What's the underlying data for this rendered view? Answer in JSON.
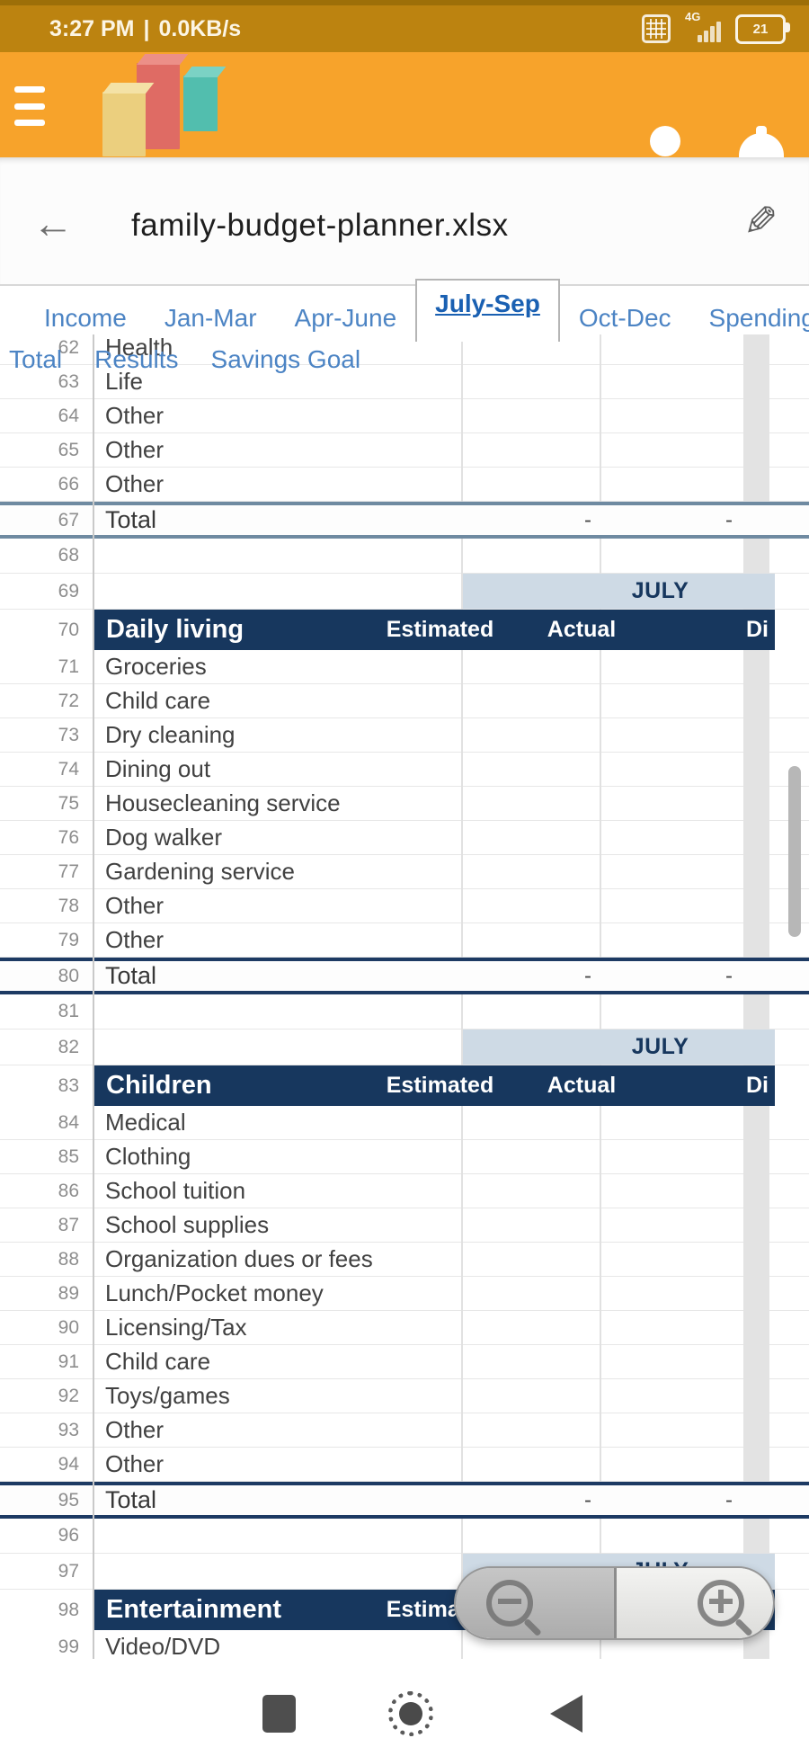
{
  "status_bar": {
    "time": "3:27 PM",
    "divider": "|",
    "net_speed": "0.0KB/s",
    "network_type": "4G",
    "battery_percent": "21"
  },
  "app_bar": {
    "menu_icon": "hamburger-menu",
    "logo_icon": "3d-bar-chart-logo",
    "profile_icon": "person",
    "notifications_icon": "bell"
  },
  "title_bar": {
    "back_icon": "arrow-left",
    "filename": "family-budget-planner.xlsx",
    "edit_icon": "pencil"
  },
  "tabs": {
    "line1": [
      {
        "label": "Income",
        "selected": false
      },
      {
        "label": "Jan-Mar",
        "selected": false
      },
      {
        "label": "Apr-June",
        "selected": false
      },
      {
        "label": "July-Sep",
        "selected": true
      },
      {
        "label": "Oct-Dec",
        "selected": false
      },
      {
        "label": "Spending",
        "selected": false
      }
    ],
    "line2": [
      {
        "label": "Total"
      },
      {
        "label": "Results"
      },
      {
        "label": "Savings Goal"
      }
    ]
  },
  "sheet": {
    "month_label": "JULY",
    "column_headers": {
      "estimated": "Estimated",
      "actual": "Actual",
      "difference_partial": "Di"
    },
    "rows": [
      {
        "n": "62",
        "type": "plain",
        "label": "Health"
      },
      {
        "n": "63",
        "type": "plain",
        "label": "Life"
      },
      {
        "n": "64",
        "type": "plain",
        "label": "Other"
      },
      {
        "n": "65",
        "type": "plain",
        "label": "Other"
      },
      {
        "n": "66",
        "type": "plain",
        "label": "Other"
      },
      {
        "n": "67",
        "type": "total",
        "variant": "slate",
        "label": "Total",
        "estimated": "-",
        "actual": "-"
      },
      {
        "n": "68",
        "type": "empty"
      },
      {
        "n": "69",
        "type": "month"
      },
      {
        "n": "70",
        "type": "section",
        "label": "Daily living"
      },
      {
        "n": "71",
        "type": "plain",
        "label": "Groceries"
      },
      {
        "n": "72",
        "type": "plain",
        "label": "Child care"
      },
      {
        "n": "73",
        "type": "plain",
        "label": "Dry cleaning"
      },
      {
        "n": "74",
        "type": "plain",
        "label": "Dining out"
      },
      {
        "n": "75",
        "type": "plain",
        "label": "Housecleaning service"
      },
      {
        "n": "76",
        "type": "plain",
        "label": "Dog walker"
      },
      {
        "n": "77",
        "type": "plain",
        "label": "Gardening service"
      },
      {
        "n": "78",
        "type": "plain",
        "label": "Other"
      },
      {
        "n": "79",
        "type": "plain",
        "label": "Other"
      },
      {
        "n": "80",
        "type": "total",
        "variant": "navy",
        "label": "Total",
        "estimated": "-",
        "actual": "-"
      },
      {
        "n": "81",
        "type": "empty"
      },
      {
        "n": "82",
        "type": "month"
      },
      {
        "n": "83",
        "type": "section",
        "label": "Children"
      },
      {
        "n": "84",
        "type": "plain",
        "label": "Medical"
      },
      {
        "n": "85",
        "type": "plain",
        "label": "Clothing"
      },
      {
        "n": "86",
        "type": "plain",
        "label": "School tuition"
      },
      {
        "n": "87",
        "type": "plain",
        "label": "School supplies"
      },
      {
        "n": "88",
        "type": "plain",
        "label": "Organization dues or fees"
      },
      {
        "n": "89",
        "type": "plain",
        "label": "Lunch/Pocket money"
      },
      {
        "n": "90",
        "type": "plain",
        "label": "Licensing/Tax"
      },
      {
        "n": "91",
        "type": "plain",
        "label": "Child care"
      },
      {
        "n": "92",
        "type": "plain",
        "label": "Toys/games"
      },
      {
        "n": "93",
        "type": "plain",
        "label": "Other"
      },
      {
        "n": "94",
        "type": "plain",
        "label": "Other"
      },
      {
        "n": "95",
        "type": "total",
        "variant": "navy",
        "label": "Total",
        "estimated": "-",
        "actual": "-"
      },
      {
        "n": "96",
        "type": "empty"
      },
      {
        "n": "97",
        "type": "month"
      },
      {
        "n": "98",
        "type": "section",
        "label": "Entertainment"
      },
      {
        "n": "99",
        "type": "plain",
        "label": "Video/DVD"
      }
    ]
  },
  "zoom_control": {
    "zoom_out_icon": "magnifier-minus",
    "zoom_in_icon": "magnifier-plus"
  },
  "nav_bar": {
    "recents_icon": "square",
    "home_icon": "circle",
    "back_icon": "triangle-left"
  },
  "colors": {
    "toolbar_orange": "#F7A32B",
    "status_orange": "#BC8310",
    "navy_header": "#17375E",
    "month_band_blue": "#CEDAE5",
    "tab_blue": "#4C84C4",
    "tab_selected_blue": "#1A60B2",
    "total_border_slate": "#6F8AA1",
    "total_border_navy": "#1D3A63"
  }
}
